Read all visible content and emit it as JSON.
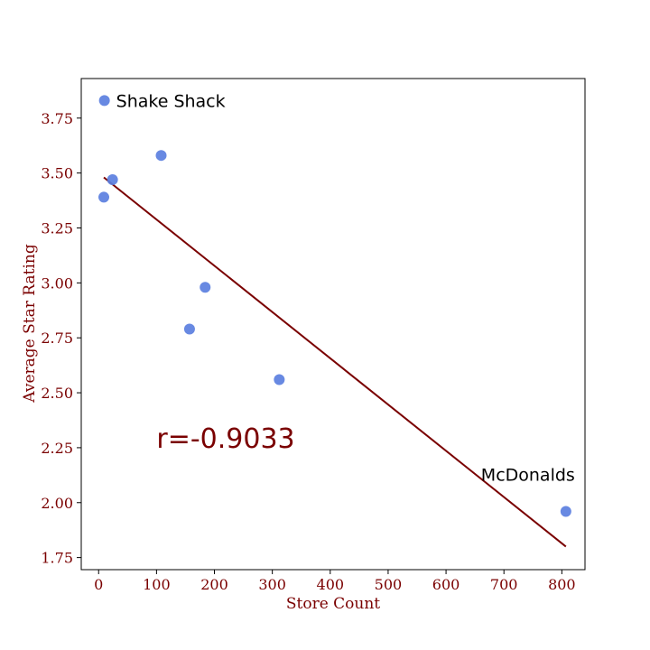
{
  "colors": {
    "text": "#7a0000",
    "point": "#5b7fe0",
    "line": "#7a0000",
    "axes": "#000000",
    "annotation": "#000000"
  },
  "chart_data": {
    "type": "scatter",
    "title": "",
    "xlabel": "Store Count",
    "ylabel": "Average Star Rating",
    "xlim": [
      -30,
      840
    ],
    "ylim": [
      1.695,
      3.93
    ],
    "xticks": [
      0,
      100,
      200,
      300,
      400,
      500,
      600,
      700,
      800
    ],
    "yticks": [
      1.75,
      2.0,
      2.25,
      2.5,
      2.75,
      3.0,
      3.25,
      3.5,
      3.75
    ],
    "ytick_labels": [
      "1.75",
      "2.00",
      "2.25",
      "2.50",
      "2.75",
      "3.00",
      "3.25",
      "3.50",
      "3.75"
    ],
    "grid": false,
    "points": [
      {
        "x": 10,
        "y": 3.83,
        "label": "Shake Shack"
      },
      {
        "x": 24,
        "y": 3.47,
        "label": ""
      },
      {
        "x": 9,
        "y": 3.39,
        "label": ""
      },
      {
        "x": 108,
        "y": 3.58,
        "label": ""
      },
      {
        "x": 184,
        "y": 2.98,
        "label": ""
      },
      {
        "x": 157,
        "y": 2.79,
        "label": ""
      },
      {
        "x": 312,
        "y": 2.56,
        "label": ""
      },
      {
        "x": 807,
        "y": 1.96,
        "label": "McDonalds"
      }
    ],
    "trendline": {
      "x": [
        9,
        807
      ],
      "y": [
        3.48,
        1.8
      ]
    },
    "annotation": {
      "text": "r=-0.9033",
      "x": 100,
      "y": 2.25
    }
  }
}
